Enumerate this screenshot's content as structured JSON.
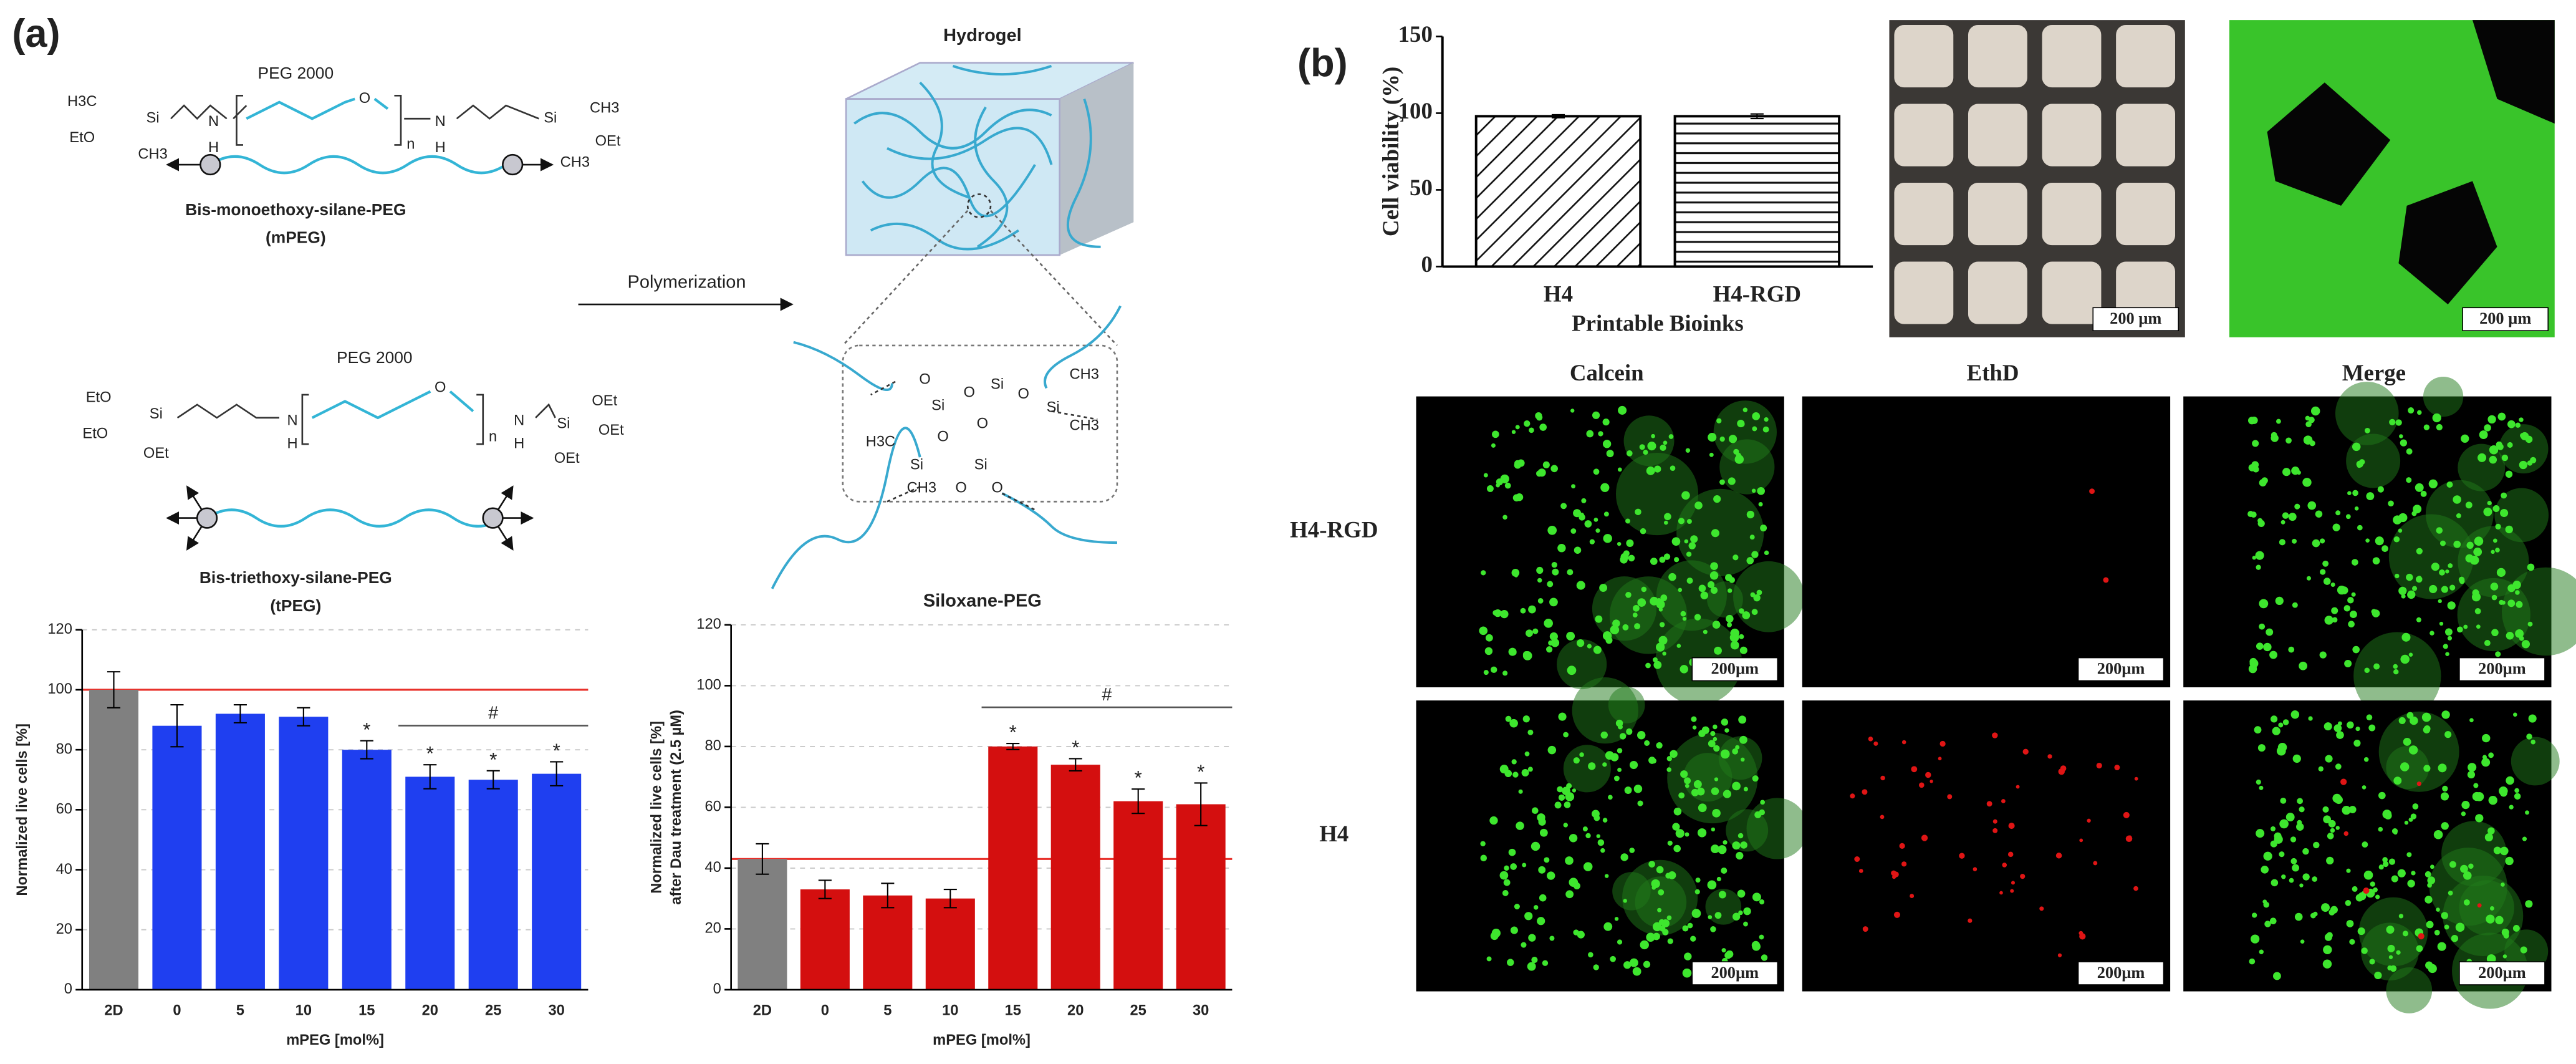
{
  "figure": {
    "panel_labels": [
      "(a)",
      "(b)"
    ],
    "scheme_1": {
      "header": "PEG 2000",
      "atoms": [
        "H3C",
        "Si",
        "EtO",
        "CH3",
        "N",
        "H",
        "O",
        "n",
        "N",
        "H",
        "Si",
        "CH3",
        "OEt",
        "CH3"
      ],
      "name": "Bis-monoethoxy-silane-PEG",
      "abbr": "(mPEG)"
    },
    "scheme_2": {
      "header": "PEG 2000",
      "atoms": [
        "EtO",
        "Si",
        "EtO",
        "OEt",
        "N",
        "H",
        "O",
        "n",
        "N",
        "H",
        "Si",
        "OEt",
        "OEt",
        "OEt"
      ],
      "name": "Bis-triethoxy-silane-PEG",
      "abbr": "(tPEG)"
    },
    "reaction": "Polymerization",
    "hydrogel": "Hydrogel",
    "network": {
      "atoms": [
        "O",
        "Si",
        "O",
        "Si",
        "O",
        "Si",
        "CH3",
        "CH3",
        "O",
        "H3C",
        "Si",
        "CH3",
        "O",
        "Si",
        "O",
        "O"
      ],
      "name": "Siloxane-PEG"
    },
    "micrographs": {
      "top_scale_bars": [
        "200 µm",
        "200 µm"
      ],
      "columns": [
        "Calcein",
        "EthD",
        "Merge"
      ],
      "rows": [
        "H4-RGD",
        "H4"
      ],
      "scale_bars": [
        "200µm",
        "200µm",
        "200µm",
        "200µm",
        "200µm",
        "200µm"
      ]
    }
  },
  "chart_data": [
    {
      "type": "bar",
      "x_label": "mPEG [mol%]",
      "y_label": [
        "Normalized live cells [%]"
      ],
      "categories": [
        "2D",
        "0",
        "5",
        "10",
        "15",
        "20",
        "25",
        "30"
      ],
      "values": [
        100,
        88,
        92,
        91,
        80,
        71,
        70,
        72
      ],
      "errors": [
        6,
        7,
        3,
        3,
        3,
        4,
        3,
        4
      ],
      "colors": [
        "#808080",
        "#1f3ff0",
        "#1f3ff0",
        "#1f3ff0",
        "#1f3ff0",
        "#1f3ff0",
        "#1f3ff0",
        "#1f3ff0"
      ],
      "reference_line": {
        "value": 100,
        "color": "#e8312b"
      },
      "star_label": "*",
      "star_categories": [
        "15",
        "20",
        "25",
        "30"
      ],
      "bracket_label": "#",
      "bracket_categories": [
        "20",
        "30"
      ],
      "ylim": [
        0,
        120
      ],
      "yticks": [
        0,
        20,
        40,
        60,
        80,
        100,
        120
      ],
      "grid": true
    },
    {
      "type": "bar",
      "x_label": "mPEG [mol%]",
      "y_label": [
        "Normalized live cells [%]",
        "after Dau treatment (2.5 µM)"
      ],
      "categories": [
        "2D",
        "0",
        "5",
        "10",
        "15",
        "20",
        "25",
        "30"
      ],
      "values": [
        43,
        33,
        31,
        30,
        80,
        74,
        62,
        61
      ],
      "errors": [
        5,
        3,
        4,
        3,
        1,
        2,
        4,
        7
      ],
      "colors": [
        "#808080",
        "#d40f0f",
        "#d40f0f",
        "#d40f0f",
        "#d40f0f",
        "#d40f0f",
        "#d40f0f",
        "#d40f0f"
      ],
      "reference_line": {
        "value": 43,
        "color": "#e8312b"
      },
      "star_label": "*",
      "star_categories": [
        "15",
        "20",
        "25",
        "30"
      ],
      "bracket_label": "#",
      "bracket_categories": [
        "15",
        "30"
      ],
      "ylim": [
        0,
        120
      ],
      "yticks": [
        0,
        20,
        40,
        60,
        80,
        100,
        120
      ],
      "grid": true
    },
    {
      "type": "bar",
      "x_label": "Printable Bioinks",
      "y_label": [
        "Cell viability (%)"
      ],
      "categories": [
        "H4",
        "H4-RGD"
      ],
      "values": [
        98,
        98
      ],
      "errors": [
        1,
        1.5
      ],
      "colors": [
        "#ffffff",
        "#ffffff"
      ],
      "hatches": [
        "diagonal",
        "horizontal"
      ],
      "ylim": [
        0,
        150
      ],
      "yticks": [
        0,
        50,
        100,
        150
      ],
      "grid": false
    }
  ]
}
